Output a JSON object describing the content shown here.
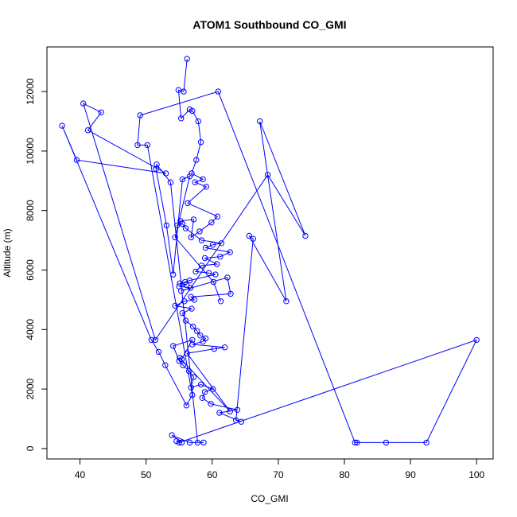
{
  "chart_data": {
    "type": "line",
    "title": "ATOM1 Southbound CO_GMI",
    "xlabel": "CO_GMI",
    "ylabel": "Altitude (m)",
    "xlim": [
      35,
      102.5
    ],
    "ylim": [
      -350,
      13500
    ],
    "xticks": [
      40,
      50,
      60,
      70,
      80,
      90,
      100
    ],
    "yticks": [
      0,
      2000,
      4000,
      6000,
      8000,
      10000,
      12000
    ],
    "grid": false,
    "legend": "none",
    "series": [
      {
        "color": "#0000ff",
        "marker": "open-circle",
        "x": [
          56.2,
          55.7,
          54.9,
          55.3,
          56.6,
          57.0,
          57.9,
          58.3,
          57.6,
          56.9,
          58.6,
          57.4,
          59.1,
          56.3,
          60.8,
          59.9,
          58.1,
          56.8,
          57.2,
          55.2,
          54.7,
          55.5,
          56.0,
          58.4,
          61.4,
          60.1,
          59.0,
          62.7,
          61.2,
          58.9,
          60.7,
          58.4,
          57.5,
          59.5,
          60.5,
          56.6,
          55.9,
          55.1,
          56.1,
          55.0,
          56.7,
          55.3,
          62.3,
          62.8,
          56.8,
          57.3,
          55.8,
          54.4,
          56.9,
          55.5,
          56.0,
          57.1,
          57.7,
          58.2,
          59.0,
          58.6,
          57.0,
          61.9,
          60.3,
          56.2,
          62.7,
          55.1,
          55.4,
          57.0,
          54.1,
          55.0,
          55.6,
          56.5,
          57.2,
          56.8,
          58.3,
          60.1,
          58.9,
          58.5,
          59.8,
          63.8,
          61.1,
          64.4,
          63.6,
          66.2,
          65.6,
          71.2,
          67.2,
          74.1,
          68.4,
          51.4,
          40.5,
          43.2,
          41.2,
          53.0,
          39.5,
          37.3,
          50.8,
          51.9,
          52.9,
          56.1,
          57.0,
          50.2,
          48.7,
          49.1,
          60.9,
          81.6,
          81.9,
          86.3,
          92.4,
          100.0,
          55.0,
          54.6,
          55.4,
          53.9,
          56.6,
          58.7,
          57.8,
          53.7,
          51.6,
          51.5,
          53.1,
          54.1,
          55.5,
          56.6,
          54.4,
          60.2,
          61.3
        ]
      }
    ],
    "y_values_note_free": true,
    "y": [
      13100,
      12000,
      12050,
      11100,
      11400,
      11350,
      11000,
      10300,
      9700,
      9250,
      9050,
      8950,
      8800,
      8250,
      7800,
      7600,
      7300,
      7100,
      7700,
      7650,
      7500,
      7550,
      7400,
      7000,
      6900,
      6850,
      6750,
      6600,
      6450,
      6400,
      6200,
      6150,
      5950,
      5900,
      5850,
      5650,
      5600,
      5550,
      5500,
      5450,
      5400,
      5300,
      5750,
      5200,
      5100,
      5000,
      4950,
      4800,
      4700,
      4550,
      4300,
      4100,
      3950,
      3800,
      3700,
      3600,
      3500,
      3400,
      3350,
      3200,
      1250,
      3050,
      3000,
      3650,
      3450,
      2950,
      2800,
      2600,
      2400,
      2050,
      2150,
      2000,
      1900,
      1700,
      1500,
      1300,
      1200,
      900,
      950,
      7050,
      7150,
      4950,
      11000,
      7150,
      9200,
      3650,
      11600,
      11300,
      10700,
      9250,
      9700,
      10850,
      3650,
      3250,
      2800,
      1450,
      1800,
      10200,
      10200,
      11200,
      12000,
      200,
      200,
      200,
      200,
      3650,
      200,
      250,
      200,
      450,
      200,
      200,
      200,
      8950,
      9550,
      9400,
      7500,
      5850,
      9050,
      9150,
      7100,
      5600,
      4950
    ]
  }
}
